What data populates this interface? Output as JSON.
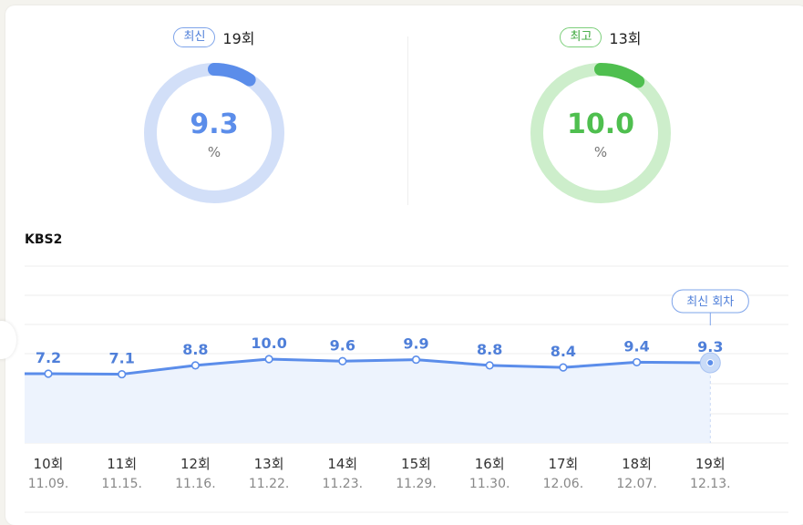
{
  "gauges": {
    "latest": {
      "badge": "최신",
      "episode": "19회",
      "value": "9.3",
      "unit": "%",
      "fill_fraction": 0.093,
      "color": "#5b8dea",
      "track_color": "#d2dff8"
    },
    "best": {
      "badge": "최고",
      "episode": "13회",
      "value": "10.0",
      "unit": "%",
      "fill_fraction": 0.1,
      "color": "#4fbf4f",
      "track_color": "#cdeecb"
    }
  },
  "chart_data": {
    "type": "area",
    "title": "KBS2",
    "categories": [
      "10회",
      "11회",
      "12회",
      "13회",
      "14회",
      "15회",
      "16회",
      "17회",
      "18회",
      "19회"
    ],
    "dates": [
      "11.09.",
      "11.15.",
      "11.16.",
      "11.22.",
      "11.23.",
      "11.29.",
      "11.30.",
      "12.06.",
      "12.07.",
      "12.13."
    ],
    "values": [
      7.2,
      7.1,
      8.8,
      10.0,
      9.6,
      9.9,
      8.8,
      8.4,
      9.4,
      9.3
    ],
    "value_labels": [
      "7.2",
      "7.1",
      "8.8",
      "10.0",
      "9.6",
      "9.9",
      "8.8",
      "8.4",
      "9.4",
      "9.3"
    ],
    "highlight": {
      "index": 9,
      "label": "최신 회차"
    },
    "grid": true,
    "line_color": "#5b8dea",
    "fill_color": "#edf3fd",
    "label_color": "#4f7fd9",
    "axis_text_color": "#333333",
    "date_text_color": "#888888"
  }
}
